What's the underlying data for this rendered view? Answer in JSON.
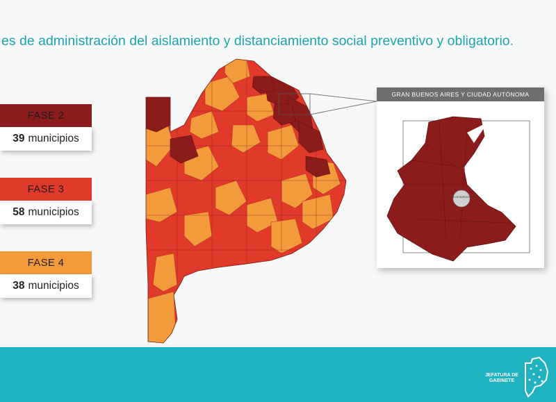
{
  "header": {
    "title": "es de administración del aislamiento y distanciamiento social preventivo y obligatorio."
  },
  "legend": [
    {
      "phase": "FASE 2",
      "count": "39",
      "unit": "municipios",
      "color": "#8c1c1c"
    },
    {
      "phase": "FASE 3",
      "count": "58",
      "unit": "municipios",
      "color": "#e23a2a"
    },
    {
      "phase": "FASE 4",
      "count": "38",
      "unit": "municipios",
      "color": "#f39a3a"
    }
  ],
  "inset": {
    "title": "GRAN BUENOS AIRES Y CIUDAD AUTÓNOMA",
    "city_label": "CIUDAD DE BUENOS AIRES"
  },
  "footer": {
    "institution_line1": "JEFATURA DE",
    "institution_line2": "GABINETE",
    "logo_icon": "province-map-logo-icon"
  },
  "colors": {
    "accent": "#1fb3c2",
    "fase2": "#8c1c1c",
    "fase3": "#e23a2a",
    "fase4": "#f39a3a"
  }
}
